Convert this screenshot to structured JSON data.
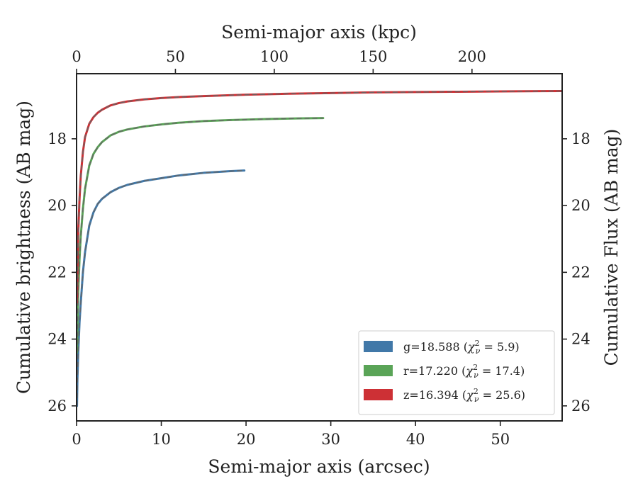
{
  "chart_data": {
    "type": "line",
    "xlabel_bottom": "Semi-major axis (arcsec)",
    "xlabel_top": "Semi-major axis (kpc)",
    "ylabel_left": "Cumulative brightness (AB mag)",
    "ylabel_right": "Cumulative Flux (AB mag)",
    "xlim": [
      0,
      57.3
    ],
    "ylim": [
      26.45,
      16.05
    ],
    "y_inverted": true,
    "x_ticks": [
      "0",
      "10",
      "20",
      "30",
      "40",
      "50"
    ],
    "x_ticks_values": [
      0,
      10,
      20,
      30,
      40,
      50
    ],
    "top_ticks": [
      "0",
      "50",
      "100",
      "150",
      "200"
    ],
    "top_ticks_values": [
      0,
      50,
      100,
      150,
      200
    ],
    "top_xlim": [
      0,
      245.6
    ],
    "y_ticks": [
      "18",
      "20",
      "22",
      "24",
      "26"
    ],
    "y_ticks_values": [
      18,
      20,
      22,
      24,
      26
    ],
    "legend_position": "lower right",
    "grid": false,
    "series": [
      {
        "name_prefix": "g=18.588 (",
        "chi_label": "χ",
        "chi_sub": "ν",
        "chi_sup": "2",
        "name_suffix": " = 5.9)",
        "color": "#4178a8",
        "fit_color": "#666666",
        "x": [
          0.05,
          0.1,
          0.2,
          0.35,
          0.5,
          0.75,
          1,
          1.5,
          2,
          2.5,
          3,
          4,
          5,
          6,
          8,
          10,
          12,
          15,
          18,
          19.8
        ],
        "y": [
          26.0,
          25.2,
          24.4,
          23.5,
          22.9,
          22.0,
          21.4,
          20.6,
          20.2,
          19.95,
          19.8,
          19.6,
          19.47,
          19.38,
          19.26,
          19.18,
          19.1,
          19.02,
          18.97,
          18.95
        ]
      },
      {
        "name_prefix": "r=17.220 (",
        "chi_label": "χ",
        "chi_sub": "ν",
        "chi_sup": "2",
        "name_suffix": " = 17.4)",
        "color": "#5aa457",
        "fit_color": "#666666",
        "x": [
          0.05,
          0.1,
          0.2,
          0.35,
          0.5,
          0.75,
          1,
          1.5,
          2,
          2.5,
          3,
          4,
          5,
          6,
          8,
          10,
          12,
          15,
          18,
          22,
          26,
          29.1
        ],
        "y": [
          24.4,
          23.6,
          22.6,
          21.6,
          20.9,
          20.1,
          19.5,
          18.8,
          18.45,
          18.25,
          18.1,
          17.9,
          17.79,
          17.72,
          17.63,
          17.57,
          17.52,
          17.47,
          17.44,
          17.41,
          17.39,
          17.38
        ]
      },
      {
        "name_prefix": "z=16.394 (",
        "chi_label": "χ",
        "chi_sub": "ν",
        "chi_sup": "2",
        "name_suffix": " = 25.6)",
        "color": "#cd3035",
        "fit_color": "#666666",
        "x": [
          0.05,
          0.1,
          0.2,
          0.35,
          0.5,
          0.75,
          1,
          1.5,
          2,
          2.5,
          3,
          4,
          5,
          6,
          8,
          10,
          12,
          15,
          20,
          25,
          30,
          35,
          40,
          45,
          50,
          57.2
        ],
        "y": [
          22.9,
          21.9,
          20.8,
          19.8,
          19.1,
          18.4,
          17.95,
          17.55,
          17.35,
          17.22,
          17.13,
          17.0,
          16.93,
          16.88,
          16.82,
          16.78,
          16.75,
          16.72,
          16.68,
          16.65,
          16.63,
          16.61,
          16.6,
          16.59,
          16.58,
          16.57
        ]
      }
    ]
  }
}
